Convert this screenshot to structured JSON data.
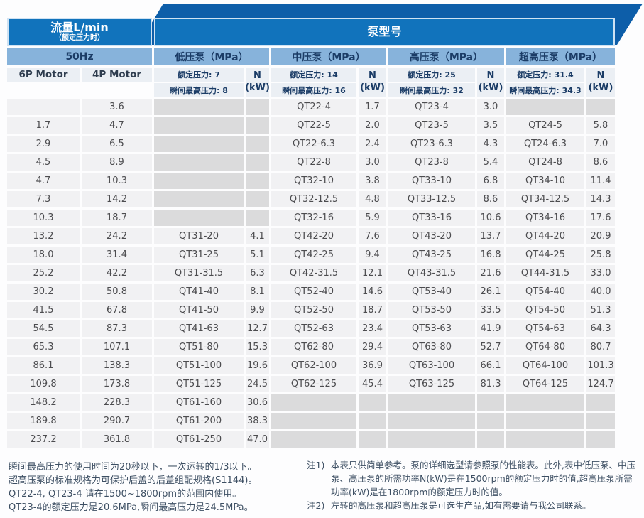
{
  "colors": {
    "banner": "#0d5ea9",
    "header_blue": "#1173bc",
    "subheader_blue": "#87b3db",
    "light_cell": "#ebeff4",
    "data_cell": "#f1f1f3",
    "empty_cell": "#dbdbdc",
    "navy_text": "#1b3c66",
    "data_text": "#4c4c4f",
    "note_text": "#3d4f63"
  },
  "table": {
    "flow": {
      "title": "流量L/min",
      "subtitle": "（额定压力时）",
      "frequency": "50Hz",
      "motor_6p": "6P Motor",
      "motor_4p": "4P Motor"
    },
    "pump_title": "泵型号",
    "power": {
      "top": "N",
      "bottom": "(kW)"
    },
    "pump_types": [
      {
        "label": "低压泵（MPa）",
        "rated": "额定压力: 7",
        "peak": "瞬间最高压力: 8"
      },
      {
        "label": "中压泵（MPa）",
        "rated": "额定压力: 14",
        "peak": "瞬间最高压力: 16"
      },
      {
        "label": "高压泵（MPa）",
        "rated": "额定压力: 25",
        "peak": "瞬间最高压力: 32"
      },
      {
        "label": "超高压泵（MPa）",
        "rated": "额定压力: 31.4",
        "peak": "瞬间最高压力: 34.3"
      }
    ],
    "rows": [
      [
        "—",
        "3.6",
        "",
        "",
        "QT22-4",
        "1.7",
        "QT23-4",
        "3.0",
        "",
        ""
      ],
      [
        "1.7",
        "4.7",
        "",
        "",
        "QT22-5",
        "2.0",
        "QT23-5",
        "3.5",
        "QT24-5",
        "5.8"
      ],
      [
        "2.9",
        "6.5",
        "",
        "",
        "QT22-6.3",
        "2.4",
        "QT23-6.3",
        "4.3",
        "QT24-6.3",
        "7.0"
      ],
      [
        "4.5",
        "8.9",
        "",
        "",
        "QT22-8",
        "3.0",
        "QT23-8",
        "5.4",
        "QT24-8",
        "8.6"
      ],
      [
        "4.7",
        "10.3",
        "",
        "",
        "QT32-10",
        "3.8",
        "QT33-10",
        "6.8",
        "QT34-10",
        "11.4"
      ],
      [
        "7.3",
        "14.2",
        "",
        "",
        "QT32-12.5",
        "4.8",
        "QT33-12.5",
        "8.6",
        "QT34-12.5",
        "14.3"
      ],
      [
        "10.3",
        "18.7",
        "",
        "",
        "QT32-16",
        "5.9",
        "QT33-16",
        "10.6",
        "QT34-16",
        "17.6"
      ],
      [
        "13.2",
        "24.2",
        "QT31-20",
        "4.1",
        "QT42-20",
        "7.6",
        "QT43-20",
        "13.7",
        "QT44-20",
        "20.9"
      ],
      [
        "18.0",
        "31.4",
        "QT31-25",
        "5.1",
        "QT42-25",
        "9.4",
        "QT43-25",
        "16.8",
        "QT44-25",
        "25.8"
      ],
      [
        "25.2",
        "42.2",
        "QT31-31.5",
        "6.3",
        "QT42-31.5",
        "12.1",
        "QT43-31.5",
        "21.6",
        "QT44-31.5",
        "33.0"
      ],
      [
        "30.2",
        "50.8",
        "QT41-40",
        "8.1",
        "QT52-40",
        "14.6",
        "QT53-40",
        "26.1",
        "QT54-40",
        "40.0"
      ],
      [
        "41.5",
        "67.8",
        "QT41-50",
        "9.9",
        "QT52-50",
        "18.7",
        "QT53-50",
        "33.5",
        "QT54-50",
        "51.3"
      ],
      [
        "54.5",
        "87.3",
        "QT41-63",
        "12.7",
        "QT52-63",
        "23.4",
        "QT53-63",
        "41.9",
        "QT54-63",
        "64.3"
      ],
      [
        "65.3",
        "107.1",
        "QT51-80",
        "15.3",
        "QT62-80",
        "29.4",
        "QT63-80",
        "52.7",
        "QT64-80",
        "80.7"
      ],
      [
        "86.1",
        "138.3",
        "QT51-100",
        "19.6",
        "QT62-100",
        "36.9",
        "QT63-100",
        "66.1",
        "QT64-100",
        "101.3"
      ],
      [
        "109.8",
        "173.8",
        "QT51-125",
        "24.5",
        "QT62-125",
        "45.4",
        "QT63-125",
        "81.3",
        "QT64-125",
        "124.7"
      ],
      [
        "148.2",
        "228.3",
        "QT61-160",
        "30.6",
        "",
        "",
        "",
        "",
        "",
        ""
      ],
      [
        "189.8",
        "290.7",
        "QT61-200",
        "38.3",
        "",
        "",
        "",
        "",
        "",
        ""
      ],
      [
        "237.2",
        "361.8",
        "QT61-250",
        "47.0",
        "",
        "",
        "",
        "",
        "",
        ""
      ]
    ],
    "column_roles": [
      "flow-6p",
      "flow-4p",
      "lp-model",
      "lp-power",
      "mp-model",
      "mp-power",
      "hp-model",
      "hp-power",
      "uhp-model",
      "uhp-power"
    ]
  },
  "notes_left": [
    "瞬间最高压力的使用时间为20秒以下，一次运转的1/3以下。",
    "超高压泵的标准规格为可保护后盖的后盖组配规格(S1144)。",
    "QT22-4, QT23-4 请在1500~1800rpm的范围内使用。",
    "QT23-4的额定压力是20.6MPa,瞬间最高压力是24.5MPa。"
  ],
  "notes_right": [
    {
      "prefix": "注1)",
      "text": "本表只供简单参考。泵的详细选型请参照泵的性能表。此外,表中低压泵、中压泵、高压泵的所需功率N(kW)是在1500rpm的额定压力时的值,超高压泵所需功率(kW)是在1800rpm的额定压力时的值。"
    },
    {
      "prefix": "注2)",
      "text": "左转的高压泵和超高压泵是可选生产品,如有需要请与我公司联系。"
    }
  ]
}
